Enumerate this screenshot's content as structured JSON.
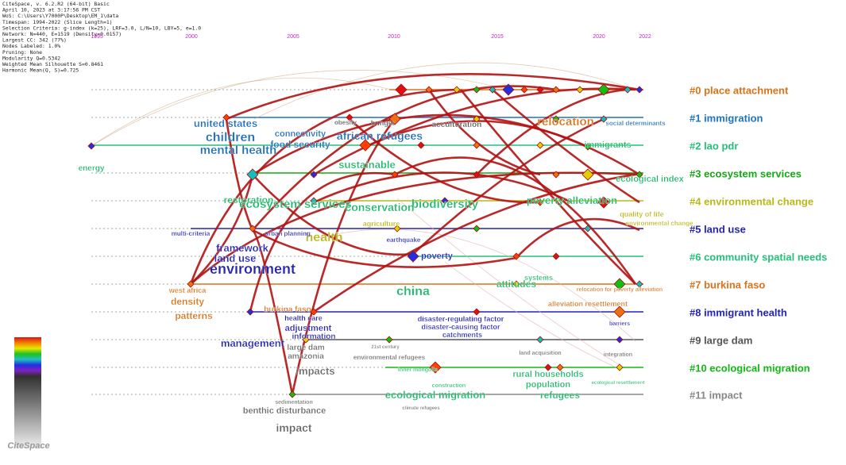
{
  "header": {
    "lines": [
      "CiteSpace, v. 6.2.R2 (64-bit) Basic",
      "April 10, 2023 at 3:17:56 PM CST",
      "WoS: C:\\Users\\Y7000P\\Desktop\\EM_1\\data",
      "Timespan: 1994-2022 (Slice Length=1)",
      "Selection Criteria: g-index (k=25), LRF=3.0, L/N=10, LBY=5, e=1.0",
      "Network: N=440, E=1519 (Density=0.0157)",
      "Largest CC: 342 (77%)",
      "Nodes Labeled: 1.0%",
      "Pruning: None",
      "Modularity Q=0.5342",
      "Weighted Mean Silhouette S=0.8461",
      "Harmonic Mean(Q, S)=0.725"
    ]
  },
  "years": [
    "1995",
    "2000",
    "2005",
    "2010",
    "2015",
    "2020",
    "2022"
  ],
  "clusters": [
    {
      "label": "#0 place attachment",
      "color": "#d8741c"
    },
    {
      "label": "#1 immigration",
      "color": "#1f74c0"
    },
    {
      "label": "#2 lao pdr",
      "color": "#25c07a"
    },
    {
      "label": "#3 ecosystem services",
      "color": "#14a814"
    },
    {
      "label": "#4 environmental change",
      "color": "#b8b818"
    },
    {
      "label": "#5 land use",
      "color": "#2424b4"
    },
    {
      "label": "#6 community spatial needs",
      "color": "#25c07a"
    },
    {
      "label": "#7 burkina faso",
      "color": "#d8741c"
    },
    {
      "label": "#8 immigrant health",
      "color": "#2424b4"
    },
    {
      "label": "#9 large dam",
      "color": "#555555"
    },
    {
      "label": "#10 ecological migration",
      "color": "#14b814"
    },
    {
      "label": "#11 impact",
      "color": "#888888"
    }
  ],
  "keywords": [
    "united states",
    "children",
    "mental health",
    "energy",
    "obesity",
    "hunger",
    "connectivity",
    "food security",
    "african refugees",
    "acculturation",
    "relocation",
    "social determinants",
    "immigrants",
    "sustainable",
    "restoration",
    "ecosystem services",
    "biodiversity",
    "conservation",
    "poverty alleviation",
    "ecological index",
    "health",
    "framework",
    "land use",
    "environment",
    "poverty",
    "attitudes",
    "china",
    "systems",
    "west africa",
    "density",
    "patterns",
    "burkina faso",
    "alleviation resettlement",
    "relocation for poverty alleviation",
    "health care",
    "adjustment",
    "information",
    "management",
    "disaster-regulating factor",
    "disaster-causing factor",
    "catchments",
    "large dam",
    "amazonia",
    "barriers",
    "environmental refugees",
    "land acquisition",
    "integration",
    "impacts",
    "inner mongolia",
    "rural households",
    "population",
    "refugees",
    "ecological migration",
    "sedimentation",
    "benthic disturbance",
    "impact",
    "construction",
    "ecological resettlement",
    "climate refugees",
    "multi-criteria",
    "urban planning",
    "agriculture",
    "earthquake",
    "quality of life",
    "environmental change",
    "21st century"
  ],
  "logo": "CiteSpace"
}
